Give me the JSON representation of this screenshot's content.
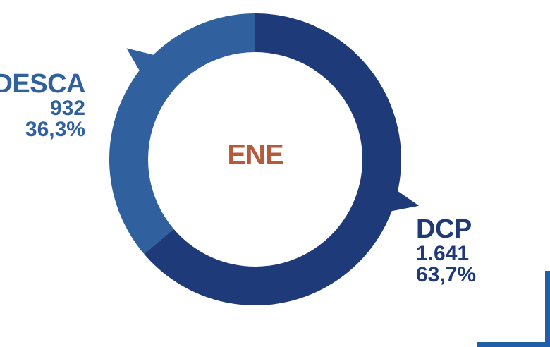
{
  "chart_data": {
    "type": "pie",
    "center_label": "ENE",
    "slices": [
      {
        "name": "DCP",
        "value": 1641,
        "value_label": "1.641",
        "percent": 63.7,
        "percent_label": "63,7%",
        "color": "#1e3a78"
      },
      {
        "name": "DESCA",
        "value": 932,
        "value_label": "932",
        "percent": 36.3,
        "percent_label": "36,3%",
        "color": "#30609e"
      }
    ]
  },
  "colors": {
    "center_label": "#b55a3a",
    "accent": "#1f5fa8"
  }
}
